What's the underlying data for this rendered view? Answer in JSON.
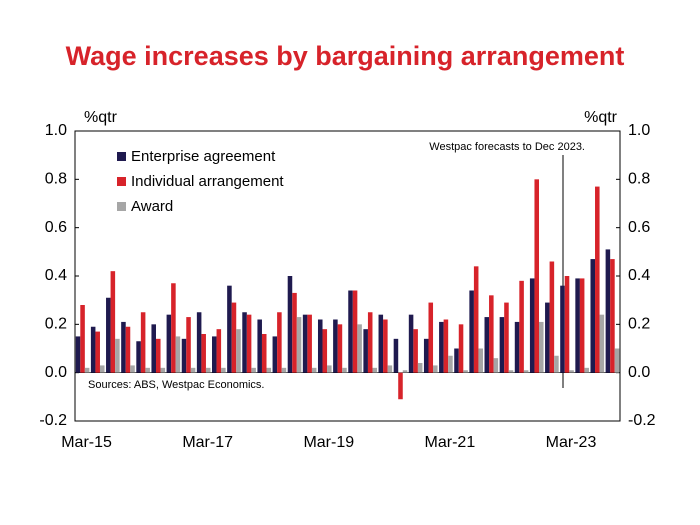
{
  "chart_data": {
    "type": "bar",
    "title": "Wage increases by bargaining arrangement",
    "y_label": "%qtr",
    "y2_label": "%qtr",
    "annotations": [
      "Westpac forecasts to Dec 2023.",
      "Sources: ABS, Westpac Economics."
    ],
    "categories": [
      "Mar-15",
      null,
      null,
      null,
      null,
      null,
      null,
      null,
      "Mar-17",
      null,
      null,
      null,
      null,
      null,
      null,
      null,
      "Mar-19",
      null,
      null,
      null,
      null,
      null,
      null,
      null,
      "Mar-21",
      null,
      null,
      null,
      null,
      null,
      null,
      null,
      "Mar-23",
      null,
      null,
      null
    ],
    "series": [
      {
        "name": "Enterprise agreement",
        "color": "#1f1a4f",
        "values": [
          0.15,
          0.19,
          0.31,
          0.21,
          0.13,
          0.2,
          0.24,
          0.14,
          0.25,
          0.15,
          0.36,
          0.25,
          0.22,
          0.15,
          0.4,
          0.24,
          0.22,
          0.22,
          0.34,
          0.18,
          0.24,
          0.14,
          0.24,
          0.14,
          0.21,
          0.1,
          0.34,
          0.23,
          0.23,
          0.21,
          0.39,
          0.29,
          0.36,
          0.39,
          0.47,
          0.51
        ]
      },
      {
        "name": "Individual arrangement",
        "color": "#d7232a",
        "values": [
          0.28,
          0.17,
          0.42,
          0.19,
          0.25,
          0.14,
          0.37,
          0.23,
          0.16,
          0.18,
          0.29,
          0.24,
          0.16,
          0.25,
          0.33,
          0.24,
          0.18,
          0.2,
          0.34,
          0.25,
          0.22,
          -0.11,
          0.18,
          0.29,
          0.22,
          0.2,
          0.44,
          0.32,
          0.29,
          0.38,
          0.8,
          0.46,
          0.4,
          0.39,
          0.77,
          0.47
        ]
      },
      {
        "name": "Award",
        "color": "#a6a6a6",
        "values": [
          0.02,
          0.03,
          0.14,
          0.03,
          0.02,
          0.02,
          0.15,
          0.02,
          0.02,
          0.02,
          0.18,
          0.02,
          0.02,
          0.02,
          0.23,
          0.02,
          0.03,
          0.02,
          0.2,
          0.02,
          0.03,
          0.01,
          0.04,
          0.03,
          0.07,
          0.01,
          0.1,
          0.06,
          0.01,
          0.01,
          0.21,
          0.07,
          0.01,
          0.02,
          0.24,
          0.1
        ]
      }
    ],
    "ylim": [
      -0.2,
      1.0
    ],
    "yticks": [
      -0.2,
      {
        "value": 0,
        "label": "0.0"
      },
      0.2,
      0.4,
      0.6,
      0.8,
      {
        "value": 1,
        "label": "1.0"
      }
    ],
    "y2lim": [
      -0.2,
      1.0
    ],
    "y2ticks": [
      -0.2,
      {
        "value": 0,
        "label": "0.0"
      },
      0.2,
      0.4,
      0.6,
      0.8,
      {
        "value": 1,
        "label": "1.0"
      }
    ],
    "legend": "upper left"
  }
}
